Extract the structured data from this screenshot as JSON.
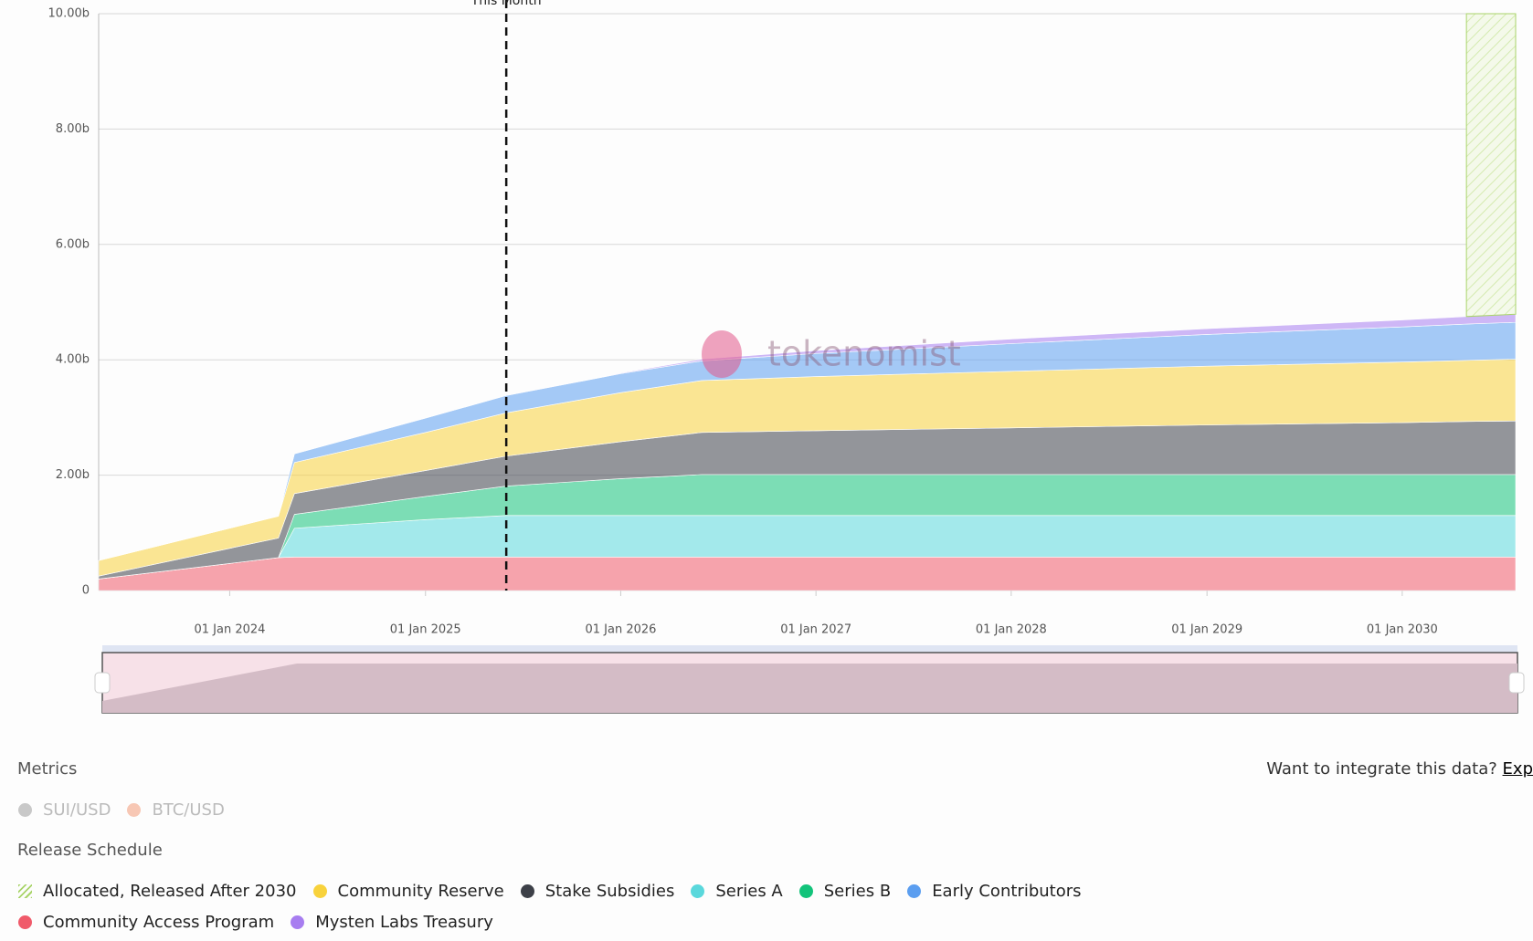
{
  "chart_data": {
    "type": "stacked-area",
    "x": [
      "2023-05-01",
      "2024-04-01",
      "2024-05-01",
      "2025-01-01",
      "2025-06-01",
      "2026-01-01",
      "2026-06-01",
      "2027-01-01",
      "2028-01-01",
      "2029-01-01",
      "2030-01-01",
      "2030-05-01",
      "2030-08-01"
    ],
    "xlim": [
      "2023-05-01",
      "2030-08-01"
    ],
    "xticks": [
      {
        "value": "2024-01-01",
        "label": "01 Jan 2024"
      },
      {
        "value": "2025-01-01",
        "label": "01 Jan 2025"
      },
      {
        "value": "2026-01-01",
        "label": "01 Jan 2026"
      },
      {
        "value": "2027-01-01",
        "label": "01 Jan 2027"
      },
      {
        "value": "2028-01-01",
        "label": "01 Jan 2028"
      },
      {
        "value": "2029-01-01",
        "label": "01 Jan 2029"
      },
      {
        "value": "2030-01-01",
        "label": "01 Jan 2030"
      }
    ],
    "ylim": [
      0,
      10
    ],
    "yticks": [
      0,
      {
        "value": 2,
        "label": "2.00b"
      },
      {
        "value": 4,
        "label": "4.00b"
      },
      {
        "value": 6,
        "label": "6.00b"
      },
      {
        "value": 8,
        "label": "8.00b"
      },
      {
        "value": 10,
        "label": "10.00b"
      }
    ],
    "grid": true,
    "stack_order": [
      6,
      3,
      4,
      2,
      1,
      5,
      7,
      0
    ],
    "series": [
      {
        "name": "Allocated, Released After 2030",
        "color": "#a9d46a",
        "hatched": true,
        "values": [
          null,
          null,
          null,
          null,
          null,
          null,
          null,
          null,
          null,
          null,
          null,
          5.25,
          5.21
        ]
      },
      {
        "name": "Community Reserve",
        "color": "#f8d23c",
        "values": [
          0.27,
          0.38,
          0.54,
          0.66,
          0.75,
          0.85,
          0.9,
          0.94,
          0.98,
          1.02,
          1.05,
          1.06,
          1.07
        ]
      },
      {
        "name": "Stake Subsidies",
        "color": "#3d4048",
        "values": [
          0.05,
          0.34,
          0.36,
          0.45,
          0.52,
          0.64,
          0.73,
          0.76,
          0.81,
          0.86,
          0.9,
          0.92,
          0.93
        ]
      },
      {
        "name": "Series A",
        "color": "#5ad8dc",
        "values": [
          0,
          0,
          0.5,
          0.65,
          0.72,
          0.72,
          0.72,
          0.72,
          0.72,
          0.72,
          0.72,
          0.72,
          0.72
        ]
      },
      {
        "name": "Series B",
        "color": "#12c37a",
        "values": [
          0,
          0,
          0.24,
          0.4,
          0.51,
          0.64,
          0.71,
          0.71,
          0.71,
          0.71,
          0.71,
          0.71,
          0.71
        ]
      },
      {
        "name": "Early Contributors",
        "color": "#5b9ef0",
        "values": [
          0,
          0,
          0.15,
          0.25,
          0.3,
          0.33,
          0.34,
          0.4,
          0.48,
          0.55,
          0.61,
          0.63,
          0.64
        ]
      },
      {
        "name": "Community Access Program",
        "color": "#f05a6a",
        "values": [
          0.2,
          0.57,
          0.58,
          0.58,
          0.58,
          0.58,
          0.58,
          0.58,
          0.58,
          0.58,
          0.58,
          0.58,
          0.58
        ]
      },
      {
        "name": "Mysten Labs Treasury",
        "color": "#a77df0",
        "values": [
          0,
          0,
          0,
          0,
          0,
          0.01,
          0.03,
          0.05,
          0.08,
          0.1,
          0.12,
          0.13,
          0.14
        ]
      }
    ],
    "annotations": [
      {
        "x": "2025-06-01",
        "label": "This Month"
      }
    ],
    "watermark": "tokenomist"
  },
  "metrics": {
    "title": "Metrics",
    "items": [
      "SUI/USD",
      "BTC/USD"
    ]
  },
  "legend_title": "Release Schedule",
  "integrate": {
    "text": "Want to integrate this data?",
    "link": "Exp"
  }
}
